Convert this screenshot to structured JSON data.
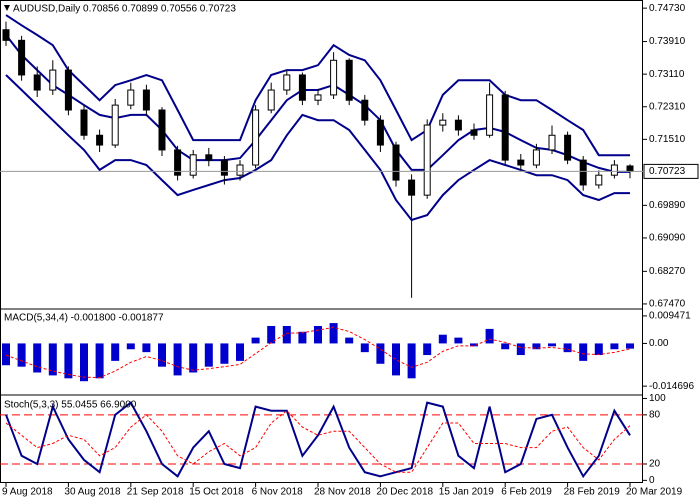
{
  "chart_data": [
    {
      "type": "candlestick",
      "title": "AUDUSD,Daily 0.70856 0.70899 0.70556 0.70723",
      "categories": [
        "9 Aug 2018",
        null,
        null,
        null,
        "30 Aug 2018",
        null,
        null,
        null,
        "21 Sep 2018",
        null,
        null,
        null,
        "15 Oct 2018",
        null,
        null,
        null,
        "6 Nov 2018",
        null,
        null,
        null,
        "28 Nov 2018",
        null,
        null,
        null,
        "20 Dec 2018",
        null,
        null,
        null,
        "15 Jan 2019",
        null,
        null,
        null,
        "6 Feb 2019",
        null,
        null,
        null,
        "28 Feb 2019",
        null,
        null,
        null,
        "20 Mar 2019"
      ],
      "open": [
        0.742,
        0.7394,
        0.7309,
        0.7272,
        0.7321,
        0.7223,
        0.7161,
        0.7137,
        0.7235,
        0.7272,
        0.7223,
        0.7125,
        0.7063,
        0.7113,
        0.71,
        0.7063,
        0.7088,
        0.7223,
        0.7272,
        0.7309,
        0.7247,
        0.726,
        0.7345,
        0.7247,
        0.7198,
        0.7137,
        0.7051,
        0.7014,
        0.7186,
        0.7198,
        0.7174,
        0.7161,
        0.726,
        0.71,
        0.7088,
        0.7125,
        0.7161,
        0.71,
        0.7039,
        0.7063,
        0.70856
      ],
      "high": [
        0.744,
        0.7405,
        0.733,
        0.7345,
        0.733,
        0.7235,
        0.7175,
        0.725,
        0.729,
        0.7285,
        0.723,
        0.7135,
        0.7125,
        0.713,
        0.711,
        0.71,
        0.7235,
        0.729,
        0.732,
        0.7315,
        0.7275,
        0.7365,
        0.735,
        0.726,
        0.721,
        0.7145,
        0.7065,
        0.72,
        0.7215,
        0.721,
        0.719,
        0.729,
        0.727,
        0.7115,
        0.714,
        0.7185,
        0.717,
        0.711,
        0.7075,
        0.71,
        0.70899
      ],
      "low": [
        0.738,
        0.7295,
        0.7255,
        0.726,
        0.721,
        0.715,
        0.712,
        0.713,
        0.7225,
        0.721,
        0.711,
        0.705,
        0.7055,
        0.7085,
        0.704,
        0.705,
        0.708,
        0.7215,
        0.726,
        0.7235,
        0.7235,
        0.725,
        0.7235,
        0.7185,
        0.712,
        0.7035,
        0.6762,
        0.7005,
        0.717,
        0.716,
        0.715,
        0.7155,
        0.709,
        0.7075,
        0.708,
        0.7115,
        0.709,
        0.7025,
        0.703,
        0.7055,
        0.70556
      ],
      "close": [
        0.7394,
        0.7309,
        0.7272,
        0.7321,
        0.7223,
        0.7161,
        0.7137,
        0.7235,
        0.7272,
        0.7223,
        0.7125,
        0.7063,
        0.7113,
        0.71,
        0.7063,
        0.7088,
        0.7223,
        0.7272,
        0.7309,
        0.7247,
        0.726,
        0.7345,
        0.7247,
        0.7198,
        0.7137,
        0.7051,
        0.7014,
        0.7186,
        0.7198,
        0.7174,
        0.7161,
        0.726,
        0.71,
        0.7088,
        0.7125,
        0.7161,
        0.71,
        0.7039,
        0.7063,
        0.7088,
        0.70723
      ],
      "color": "#000000",
      "bands": {
        "color": "#00008b",
        "upper": [
          0.7456,
          0.7431,
          0.7407,
          0.7382,
          0.7321,
          0.7284,
          0.7247,
          0.7284,
          0.7296,
          0.7309,
          0.7296,
          0.7223,
          0.7149,
          0.7149,
          0.7149,
          0.7149,
          0.7247,
          0.7309,
          0.7321,
          0.7321,
          0.7333,
          0.7382,
          0.7358,
          0.7345,
          0.7296,
          0.7223,
          0.7149,
          0.7174,
          0.726,
          0.7296,
          0.7296,
          0.7296,
          0.726,
          0.7247,
          0.7247,
          0.7223,
          0.7198,
          0.7174,
          0.7112,
          0.7112,
          0.7112
        ],
        "middle": [
          0.7407,
          0.7358,
          0.7321,
          0.7284,
          0.726,
          0.7235,
          0.7211,
          0.7203,
          0.7211,
          0.7211,
          0.7174,
          0.7125,
          0.71,
          0.71,
          0.71,
          0.7105,
          0.7149,
          0.7198,
          0.7247,
          0.7272,
          0.7272,
          0.7284,
          0.726,
          0.7235,
          0.7198,
          0.7125,
          0.7076,
          0.7076,
          0.7112,
          0.7149,
          0.7174,
          0.7179,
          0.7169,
          0.7149,
          0.713,
          0.7125,
          0.7112,
          0.7095,
          0.7081,
          0.7071,
          0.7071
        ],
        "lower": [
          0.7309,
          0.7272,
          0.7235,
          0.7198,
          0.7161,
          0.7125,
          0.7076,
          0.71,
          0.71,
          0.7088,
          0.7051,
          0.7014,
          0.7027,
          0.7039,
          0.7051,
          0.7056,
          0.7076,
          0.71,
          0.7161,
          0.7211,
          0.7198,
          0.7198,
          0.7174,
          0.7125,
          0.7076,
          0.7002,
          0.6953,
          0.6965,
          0.7014,
          0.7051,
          0.7076,
          0.71,
          0.7088,
          0.7076,
          0.7063,
          0.7063,
          0.7051,
          0.7014,
          0.7002,
          0.7019,
          0.7019
        ]
      },
      "ylim": [
        0.6737,
        0.7493
      ],
      "yticks": [
        {
          "value": 0.7473,
          "label": "0.74730"
        },
        {
          "value": 0.7391,
          "label": "0.73910"
        },
        {
          "value": 0.7311,
          "label": "0.73110"
        },
        {
          "value": 0.7231,
          "label": "0.72310"
        },
        {
          "value": 0.7151,
          "label": "0.71510"
        },
        {
          "value": 0.6989,
          "label": "0.69890"
        },
        {
          "value": 0.6909,
          "label": "0.69090"
        },
        {
          "value": 0.6827,
          "label": "0.68270"
        },
        {
          "value": 0.6747,
          "label": "0.67470"
        }
      ]
    },
    {
      "type": "bar",
      "title": "MACD(5,34,4) -0.001800 -0.001877",
      "color": "#0000cd",
      "values": [
        -0.0075,
        -0.008,
        -0.01,
        -0.011,
        -0.012,
        -0.013,
        -0.012,
        -0.006,
        -0.002,
        -0.003,
        -0.008,
        -0.011,
        -0.01,
        -0.008,
        -0.007,
        -0.006,
        0.002,
        0.006,
        0.006,
        0.004,
        0.006,
        0.007,
        0.002,
        -0.003,
        -0.007,
        -0.011,
        -0.012,
        -0.004,
        0.003,
        0.002,
        -0.001,
        0.005,
        -0.002,
        -0.004,
        -0.002,
        -0.001,
        -0.003,
        -0.006,
        -0.004,
        -0.002,
        -0.0018
      ],
      "signal": {
        "color": "#ff0000",
        "values": [
          -0.004,
          -0.006,
          -0.008,
          -0.0095,
          -0.0107,
          -0.0116,
          -0.0118,
          -0.0095,
          -0.0065,
          -0.0045,
          -0.0059,
          -0.008,
          -0.0092,
          -0.0087,
          -0.008,
          -0.0072,
          -0.0035,
          0.0003,
          0.0035,
          0.0037,
          0.0046,
          0.0055,
          0.0041,
          0.0013,
          -0.002,
          -0.0056,
          -0.0082,
          -0.0065,
          -0.0027,
          -0.0008,
          -0.0009,
          0.0015,
          0.0004,
          -0.0014,
          -0.0016,
          -0.0014,
          -0.002,
          -0.0036,
          -0.0038,
          -0.0031,
          -0.001877
        ]
      },
      "ylim": [
        -0.0174,
        0.0115
      ],
      "yticks": [
        0.009471,
        {
          "value": 0,
          "label": "0.00"
        },
        -0.014696
      ]
    },
    {
      "type": "line",
      "title": "Stoch(5,3,3) 55.0455 66.9000",
      "series": [
        {
          "color": "#00008b",
          "values": [
            80,
            30,
            20,
            90,
            50,
            25,
            10,
            80,
            95,
            60,
            20,
            5,
            40,
            60,
            20,
            15,
            90,
            85,
            85,
            30,
            55,
            90,
            40,
            10,
            5,
            10,
            15,
            95,
            90,
            30,
            15,
            90,
            10,
            20,
            75,
            80,
            40,
            5,
            30,
            85,
            55.0455
          ]
        },
        {
          "color": "#ff0000",
          "values": [
            70,
            55,
            40,
            45,
            55,
            50,
            30,
            40,
            65,
            80,
            60,
            30,
            20,
            35,
            45,
            30,
            40,
            70,
            85,
            65,
            55,
            60,
            60,
            40,
            20,
            10,
            10,
            40,
            70,
            70,
            45,
            45,
            45,
            40,
            40,
            60,
            65,
            40,
            25,
            50,
            66.9
          ]
        }
      ],
      "levels": [
        80,
        20
      ],
      "level_color": "#ff0000",
      "ylim": [
        -2,
        103
      ],
      "yticks": [
        100,
        80,
        20,
        0
      ]
    }
  ]
}
